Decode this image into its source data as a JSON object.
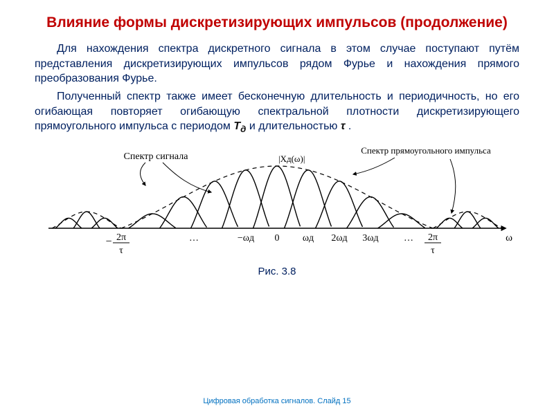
{
  "title": "Влияние формы дискретизирующих импульсов (продолжение)",
  "para1_part1": "Для нахождения спектра дискретного сигнала в этом случае поступают путём представления дискретизирующих импульсов рядом Фурье и нахождения прямого преобразования Фурье.",
  "para2_pre": "Полученный спектр также имеет бесконечную длительность и периодичность, но его огибающая повторяет огибающую спектральной плотности дискретизирующего прямоугольного импульса с периодом ",
  "T_label": "T",
  "T_sub": "д",
  "para2_mid": " и длительностью ",
  "tau_label": "τ",
  "para2_end": " .",
  "figure": {
    "label_signal": "Спектр сигнала",
    "label_pulse": "Спектр прямоугольного импульса",
    "y_axis_label": "|Xд(ω)|",
    "x_ticks": [
      "…",
      "−ωд",
      "0",
      "ωд",
      "2ωд",
      "3ωд",
      "…"
    ],
    "left_fraction_top": "2π",
    "left_fraction_bot": "τ",
    "right_fraction_top": "2π",
    "right_fraction_bot": "τ",
    "omega_label": "ω",
    "caption": "Рис. 3.8",
    "colors": {
      "stroke": "#000000",
      "text": "#000000",
      "caption": "#002060"
    },
    "envelope": {
      "main_amp": 90,
      "side_amp": 24,
      "stroke_width": 1.2,
      "dash": "6,5"
    },
    "lobes": {
      "center_count": 9,
      "center_spacing": 45,
      "center_overlap": 12,
      "side_count": 3,
      "side_spacing": 26,
      "stroke_width": 1.4
    }
  },
  "footer": "Цифровая обработка сигналов. Слайд  15"
}
